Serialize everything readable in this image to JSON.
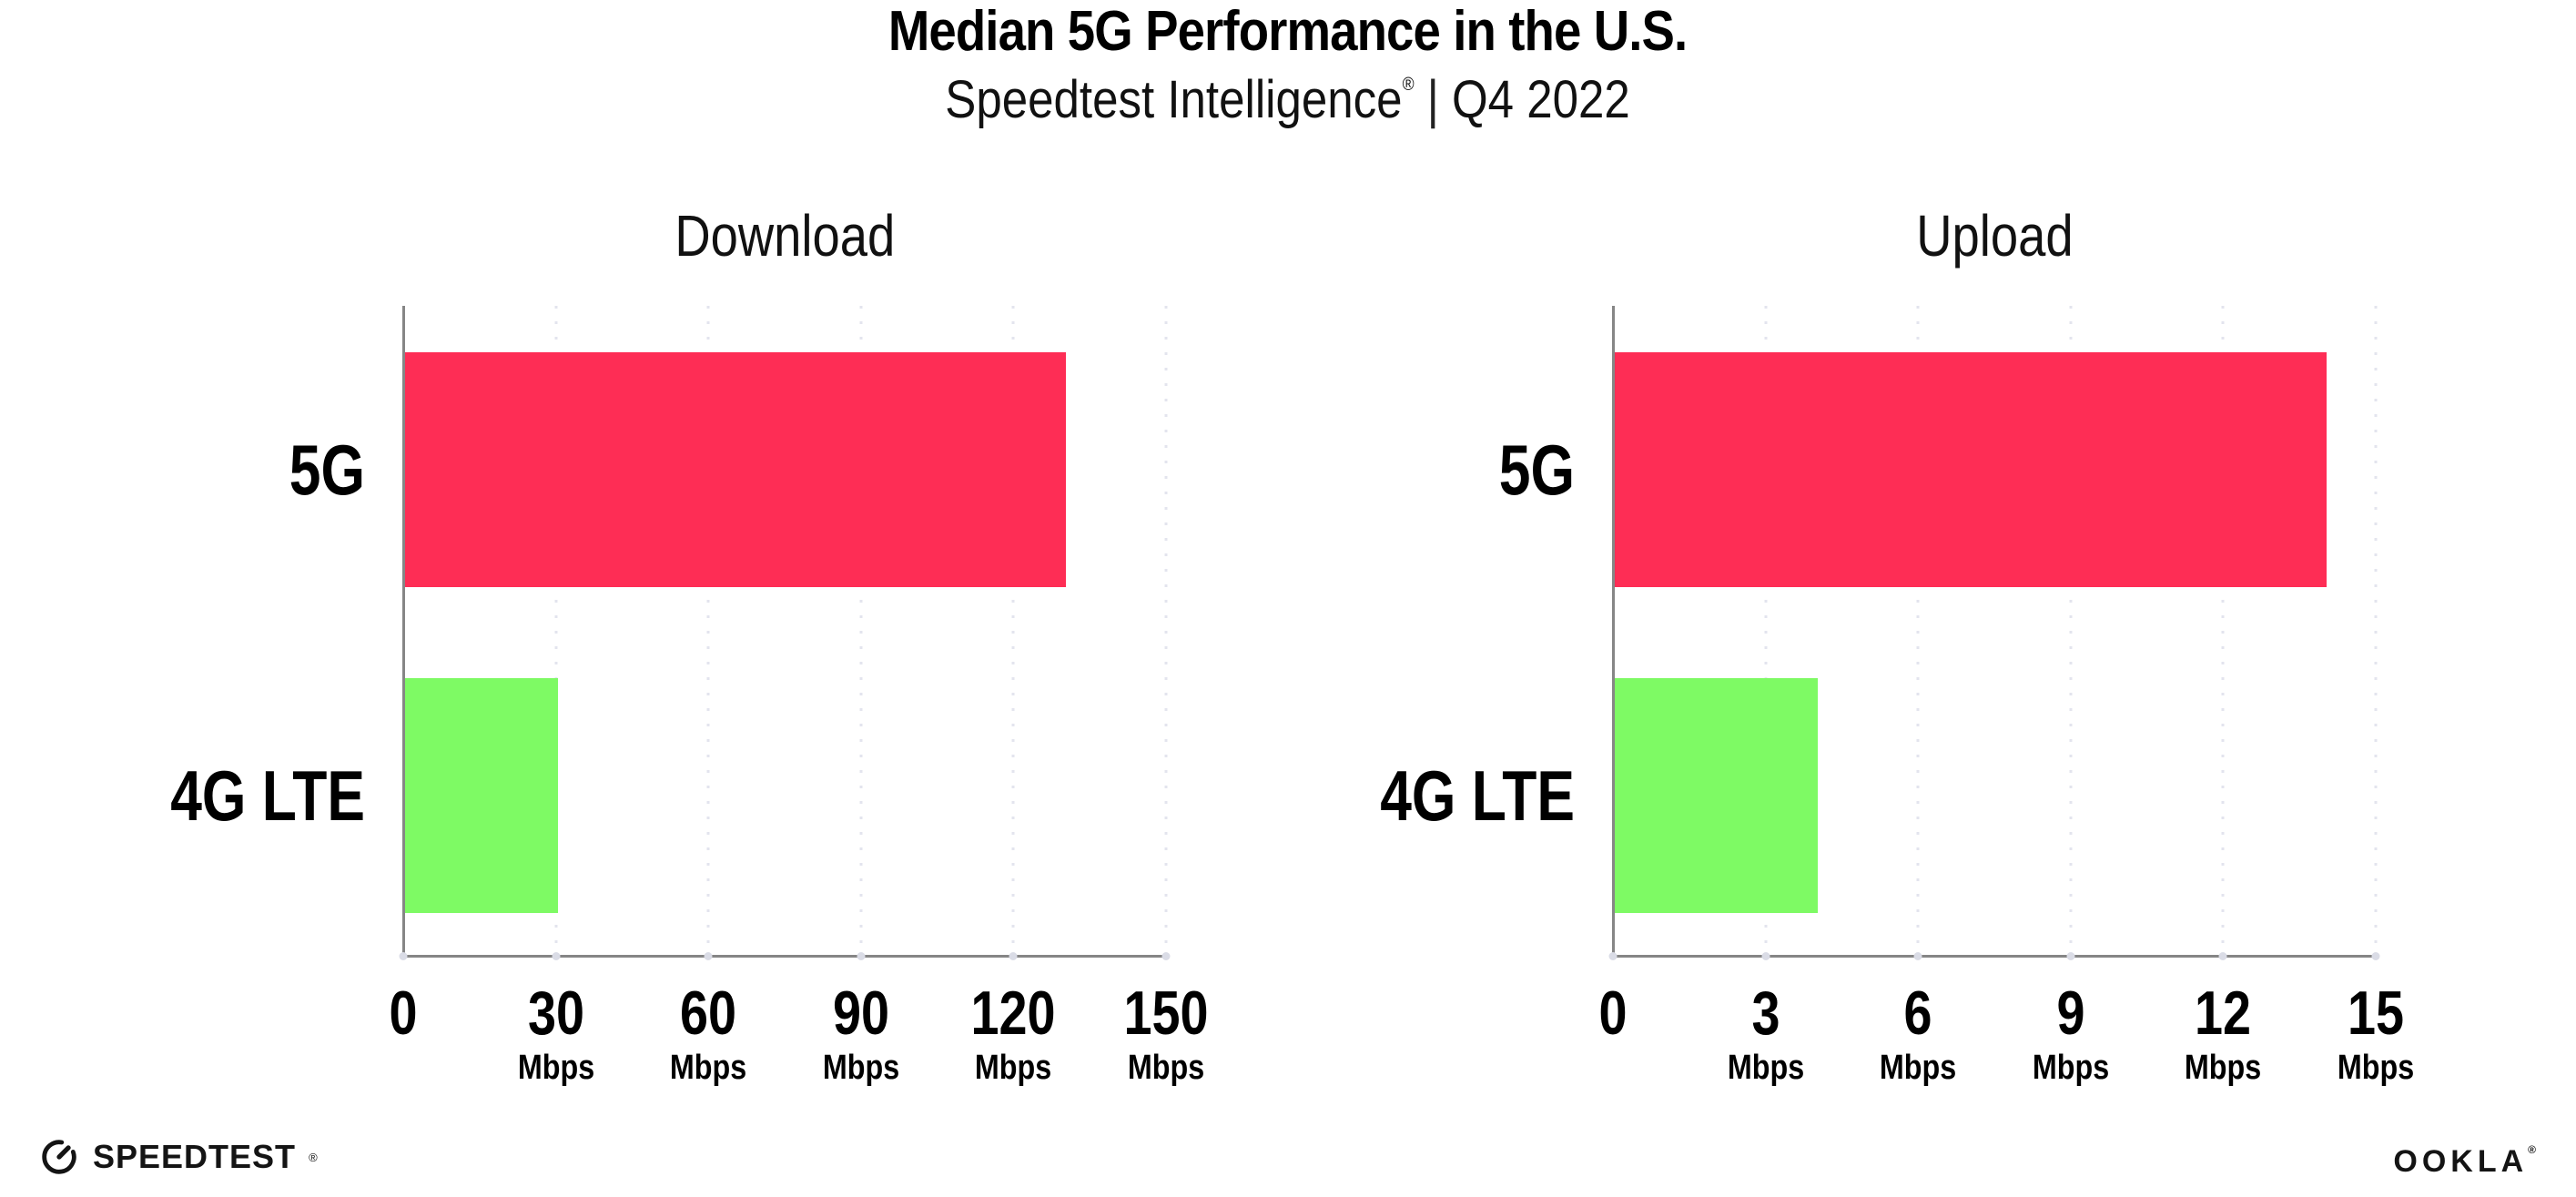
{
  "header": {
    "title": "Median 5G Performance in the U.S.",
    "subtitle_brand": "Speedtest Intelligence",
    "subtitle_reg": "®",
    "subtitle_divider": "|",
    "subtitle_period": "Q4 2022"
  },
  "footer": {
    "speedtest_logo_text": "SPEEDTEST",
    "speedtest_reg": "®",
    "ookla_logo_text": "OOKLA",
    "ookla_reg": "®"
  },
  "colors": {
    "bar_5g": "#FE2D55",
    "bar_4g_lte": "#7EFA64",
    "axis": "#868686",
    "gridline": "#E3E4EE",
    "text": "#000000"
  },
  "chart_data": [
    {
      "type": "bar",
      "orientation": "horizontal",
      "title": "Download",
      "categories": [
        "5G",
        "4G LTE"
      ],
      "values": [
        130,
        30
      ],
      "unit": "Mbps",
      "xlim": [
        0,
        150
      ],
      "xticks": [
        0,
        30,
        60,
        90,
        120,
        150
      ],
      "tick_unit_label": "Mbps",
      "bar_colors": [
        "#FE2D55",
        "#7EFA64"
      ],
      "grid": "dotted-vertical",
      "legend": "none"
    },
    {
      "type": "bar",
      "orientation": "horizontal",
      "title": "Upload",
      "categories": [
        "5G",
        "4G LTE"
      ],
      "values": [
        14,
        4
      ],
      "unit": "Mbps",
      "xlim": [
        0,
        15
      ],
      "xticks": [
        0,
        3,
        6,
        9,
        12,
        15
      ],
      "tick_unit_label": "Mbps",
      "bar_colors": [
        "#FE2D55",
        "#7EFA64"
      ],
      "grid": "dotted-vertical",
      "legend": "none"
    }
  ]
}
